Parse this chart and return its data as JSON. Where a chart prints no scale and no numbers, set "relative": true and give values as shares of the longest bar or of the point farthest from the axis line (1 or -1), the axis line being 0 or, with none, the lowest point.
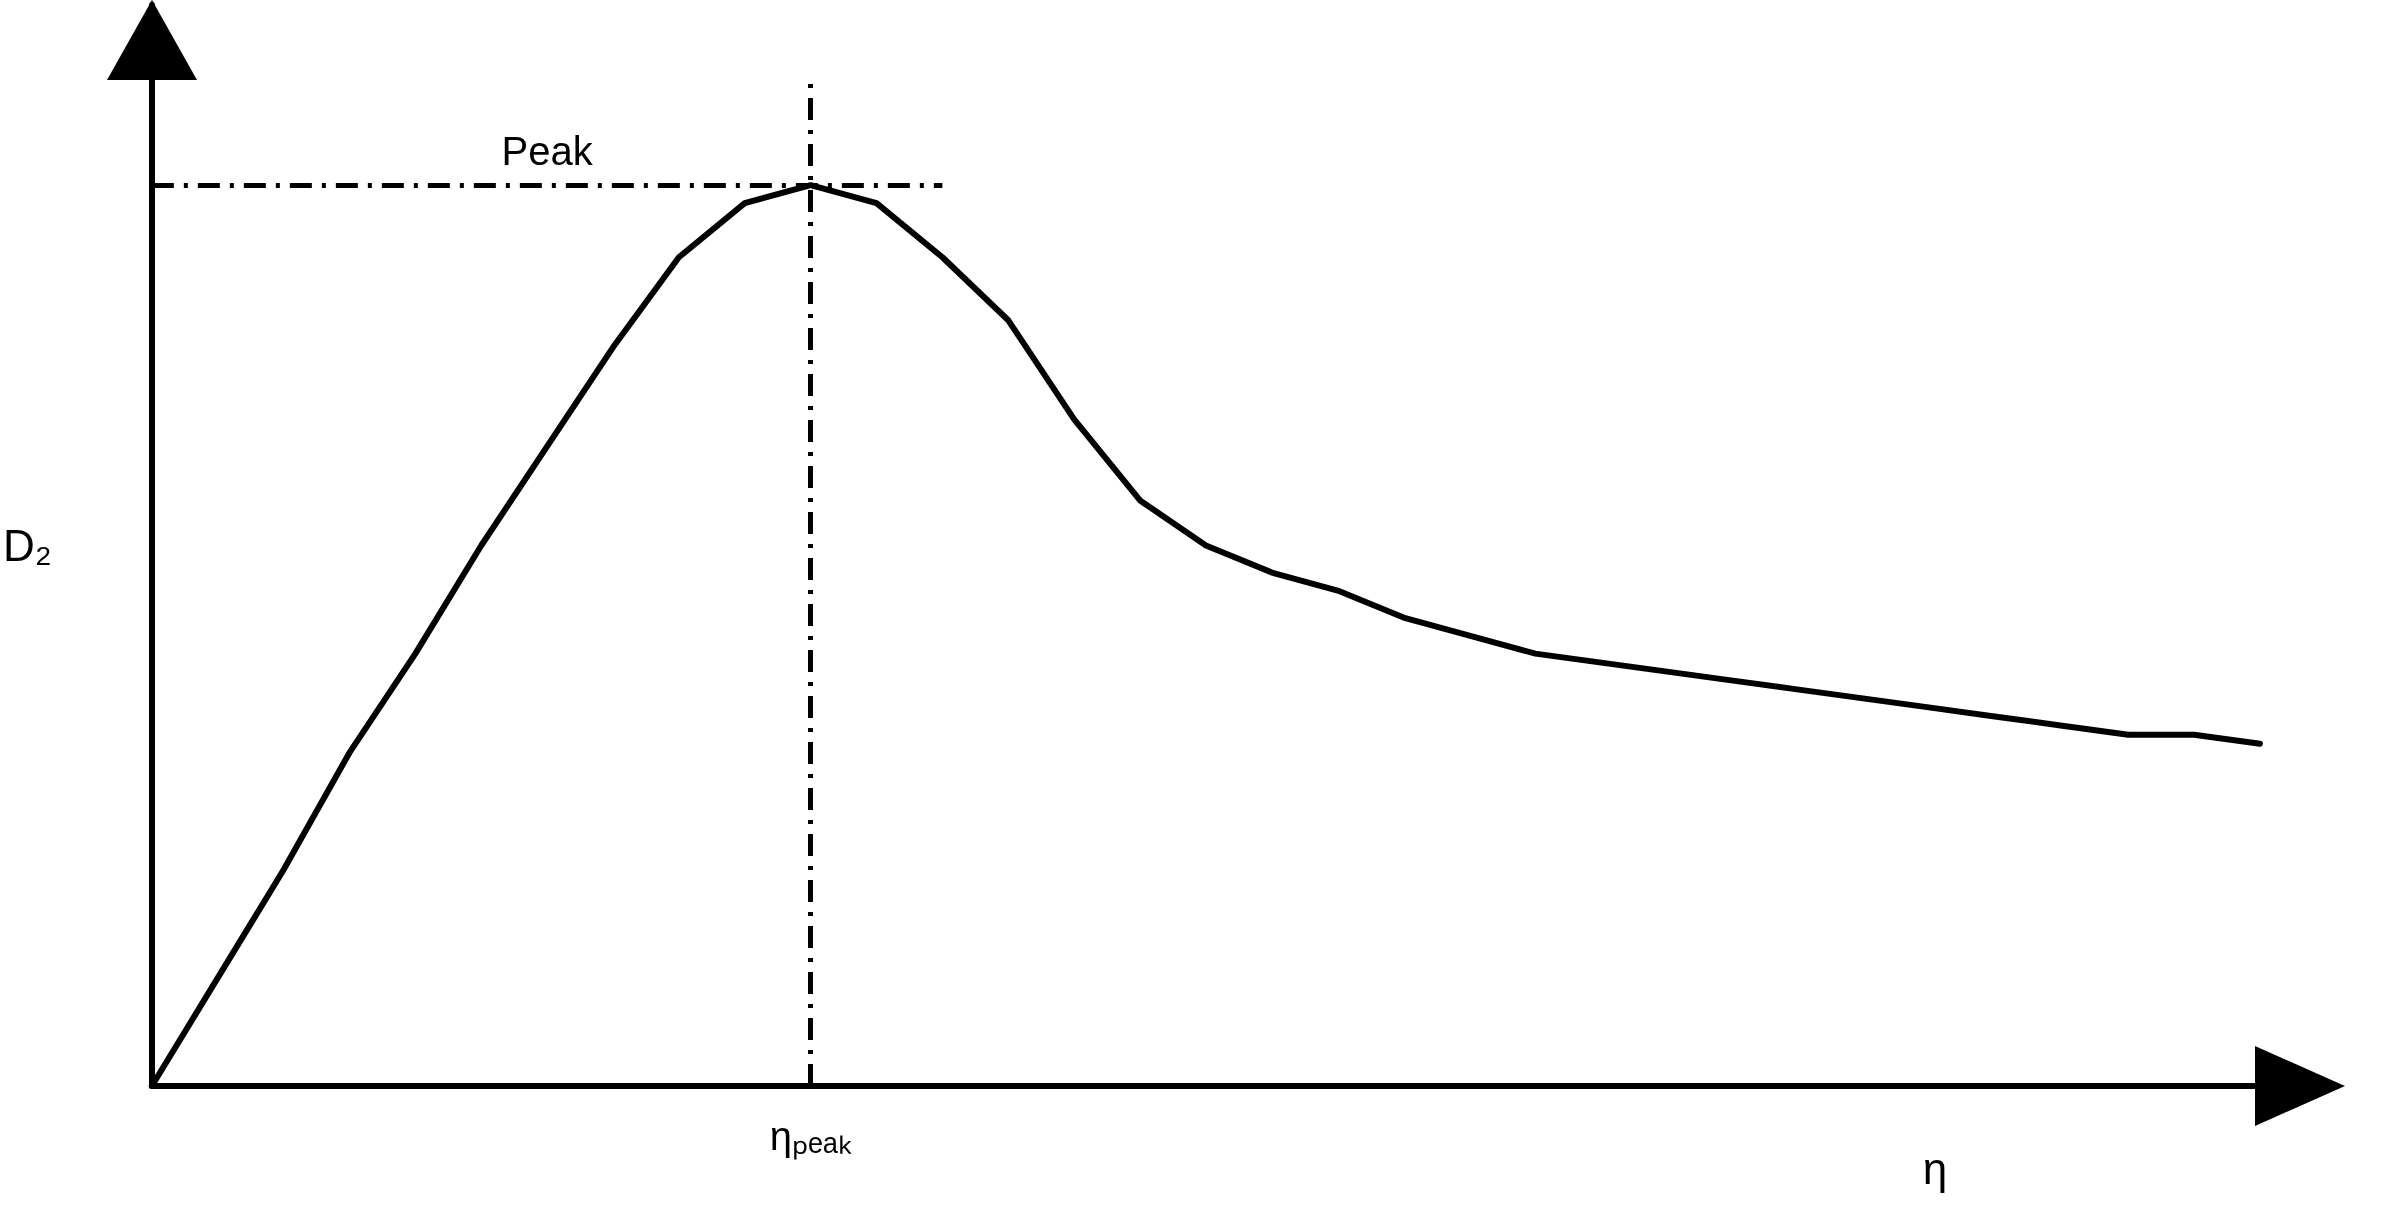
{
  "chart_data": {
    "type": "line",
    "relative": true,
    "xlabel": "η",
    "ylabel": "D₂",
    "categories": [
      null,
      null,
      null,
      null,
      null,
      null,
      null,
      null,
      null,
      null,
      null,
      null,
      null,
      null,
      null,
      null,
      null,
      null,
      null,
      null,
      null,
      null,
      null,
      null,
      null,
      null,
      null,
      null,
      null,
      null,
      null,
      null,
      null
    ],
    "series": [
      {
        "color": "#000000",
        "values": [
          0,
          0.12,
          0.24,
          0.37,
          0.48,
          0.6,
          0.71,
          0.82,
          0.92,
          0.98,
          1,
          0.98,
          0.92,
          0.85,
          0.74,
          0.65,
          0.6,
          0.57,
          0.55,
          0.52,
          0.5,
          0.48,
          0.47,
          0.46,
          0.45,
          0.44,
          0.43,
          0.42,
          0.41,
          0.4,
          0.39,
          0.39,
          0.38
        ]
      }
    ],
    "ref_lines": [
      {
        "axis": "y",
        "value": 1,
        "label": "Peak",
        "color": "#000000",
        "line_style": "dashed"
      },
      {
        "axis": "x",
        "label": "ηₚₑₐₖ",
        "color": "#000000",
        "line_style": "dashed"
      }
    ],
    "grid": false,
    "marker": "none",
    "line_style": "solid"
  }
}
